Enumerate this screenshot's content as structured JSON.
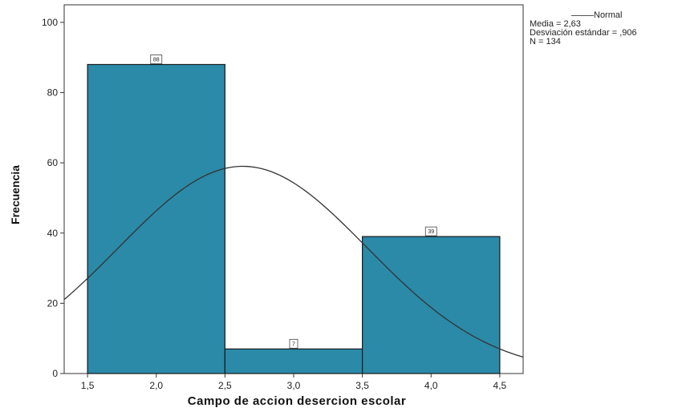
{
  "chart_data": {
    "type": "bar",
    "title": "",
    "xlabel": "Campo de accion desercion escolar",
    "ylabel": "Frecuencia",
    "bins": [
      {
        "x_start": 1.5,
        "x_end": 2.5,
        "value": 88,
        "label": "88"
      },
      {
        "x_start": 2.5,
        "x_end": 3.5,
        "value": 7,
        "label": "7"
      },
      {
        "x_start": 3.5,
        "x_end": 4.5,
        "value": 39,
        "label": "39"
      }
    ],
    "xlim": [
      1.33,
      4.67
    ],
    "ylim": [
      0,
      105
    ],
    "x_ticks": [
      {
        "value": 1.5,
        "label": "1,5"
      },
      {
        "value": 2.0,
        "label": "2,0"
      },
      {
        "value": 2.5,
        "label": "2,5"
      },
      {
        "value": 3.0,
        "label": "3,0"
      },
      {
        "value": 3.5,
        "label": "3,5"
      },
      {
        "value": 4.0,
        "label": "4,0"
      },
      {
        "value": 4.5,
        "label": "4,5"
      }
    ],
    "y_ticks": [
      {
        "value": 0,
        "label": "0"
      },
      {
        "value": 20,
        "label": "20"
      },
      {
        "value": 40,
        "label": "40"
      },
      {
        "value": 60,
        "label": "60"
      },
      {
        "value": 80,
        "label": "80"
      },
      {
        "value": 100,
        "label": "100"
      }
    ],
    "normal_curve": {
      "mean": 2.63,
      "sd": 0.906,
      "n": 134,
      "bin_width": 1
    },
    "colors": {
      "bar_fill": "#2a8aa8",
      "bar_stroke": "#1a1a1a",
      "curve": "#333333",
      "frame": "#333333"
    }
  },
  "legend": {
    "series_name": "Normal",
    "mean_text": "Media = 2,63",
    "sd_text": "Desviación estándar = ,906",
    "n_text": "N = 134"
  }
}
